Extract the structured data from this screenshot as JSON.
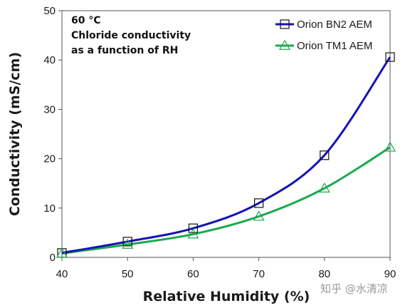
{
  "chart_data": {
    "type": "line",
    "title": "",
    "xlabel": "Relative Humidity (%)",
    "ylabel": "Conductivity (mS/cm)",
    "xlim": [
      40,
      90
    ],
    "ylim": [
      0,
      50
    ],
    "xticks": [
      40,
      50,
      60,
      70,
      80,
      90
    ],
    "yticks": [
      0,
      10,
      20,
      30,
      40,
      50
    ],
    "grid": false,
    "legend_position": "top-right",
    "annotation": [
      "60 °C",
      "Chloride conductivity",
      "as a function of RH"
    ],
    "x": [
      40,
      50,
      60,
      70,
      80,
      90
    ],
    "series": [
      {
        "name": "Orion BN2 AEM",
        "color": "#1414b4",
        "marker": "square",
        "values": [
          0.9,
          3.2,
          5.9,
          11.0,
          20.7,
          40.6
        ]
      },
      {
        "name": "Orion TM1 AEM",
        "color": "#1fa84f",
        "marker": "triangle",
        "values": [
          0.8,
          2.6,
          4.7,
          8.3,
          14.0,
          22.3
        ]
      }
    ]
  },
  "watermark": "知乎 @水清凉"
}
